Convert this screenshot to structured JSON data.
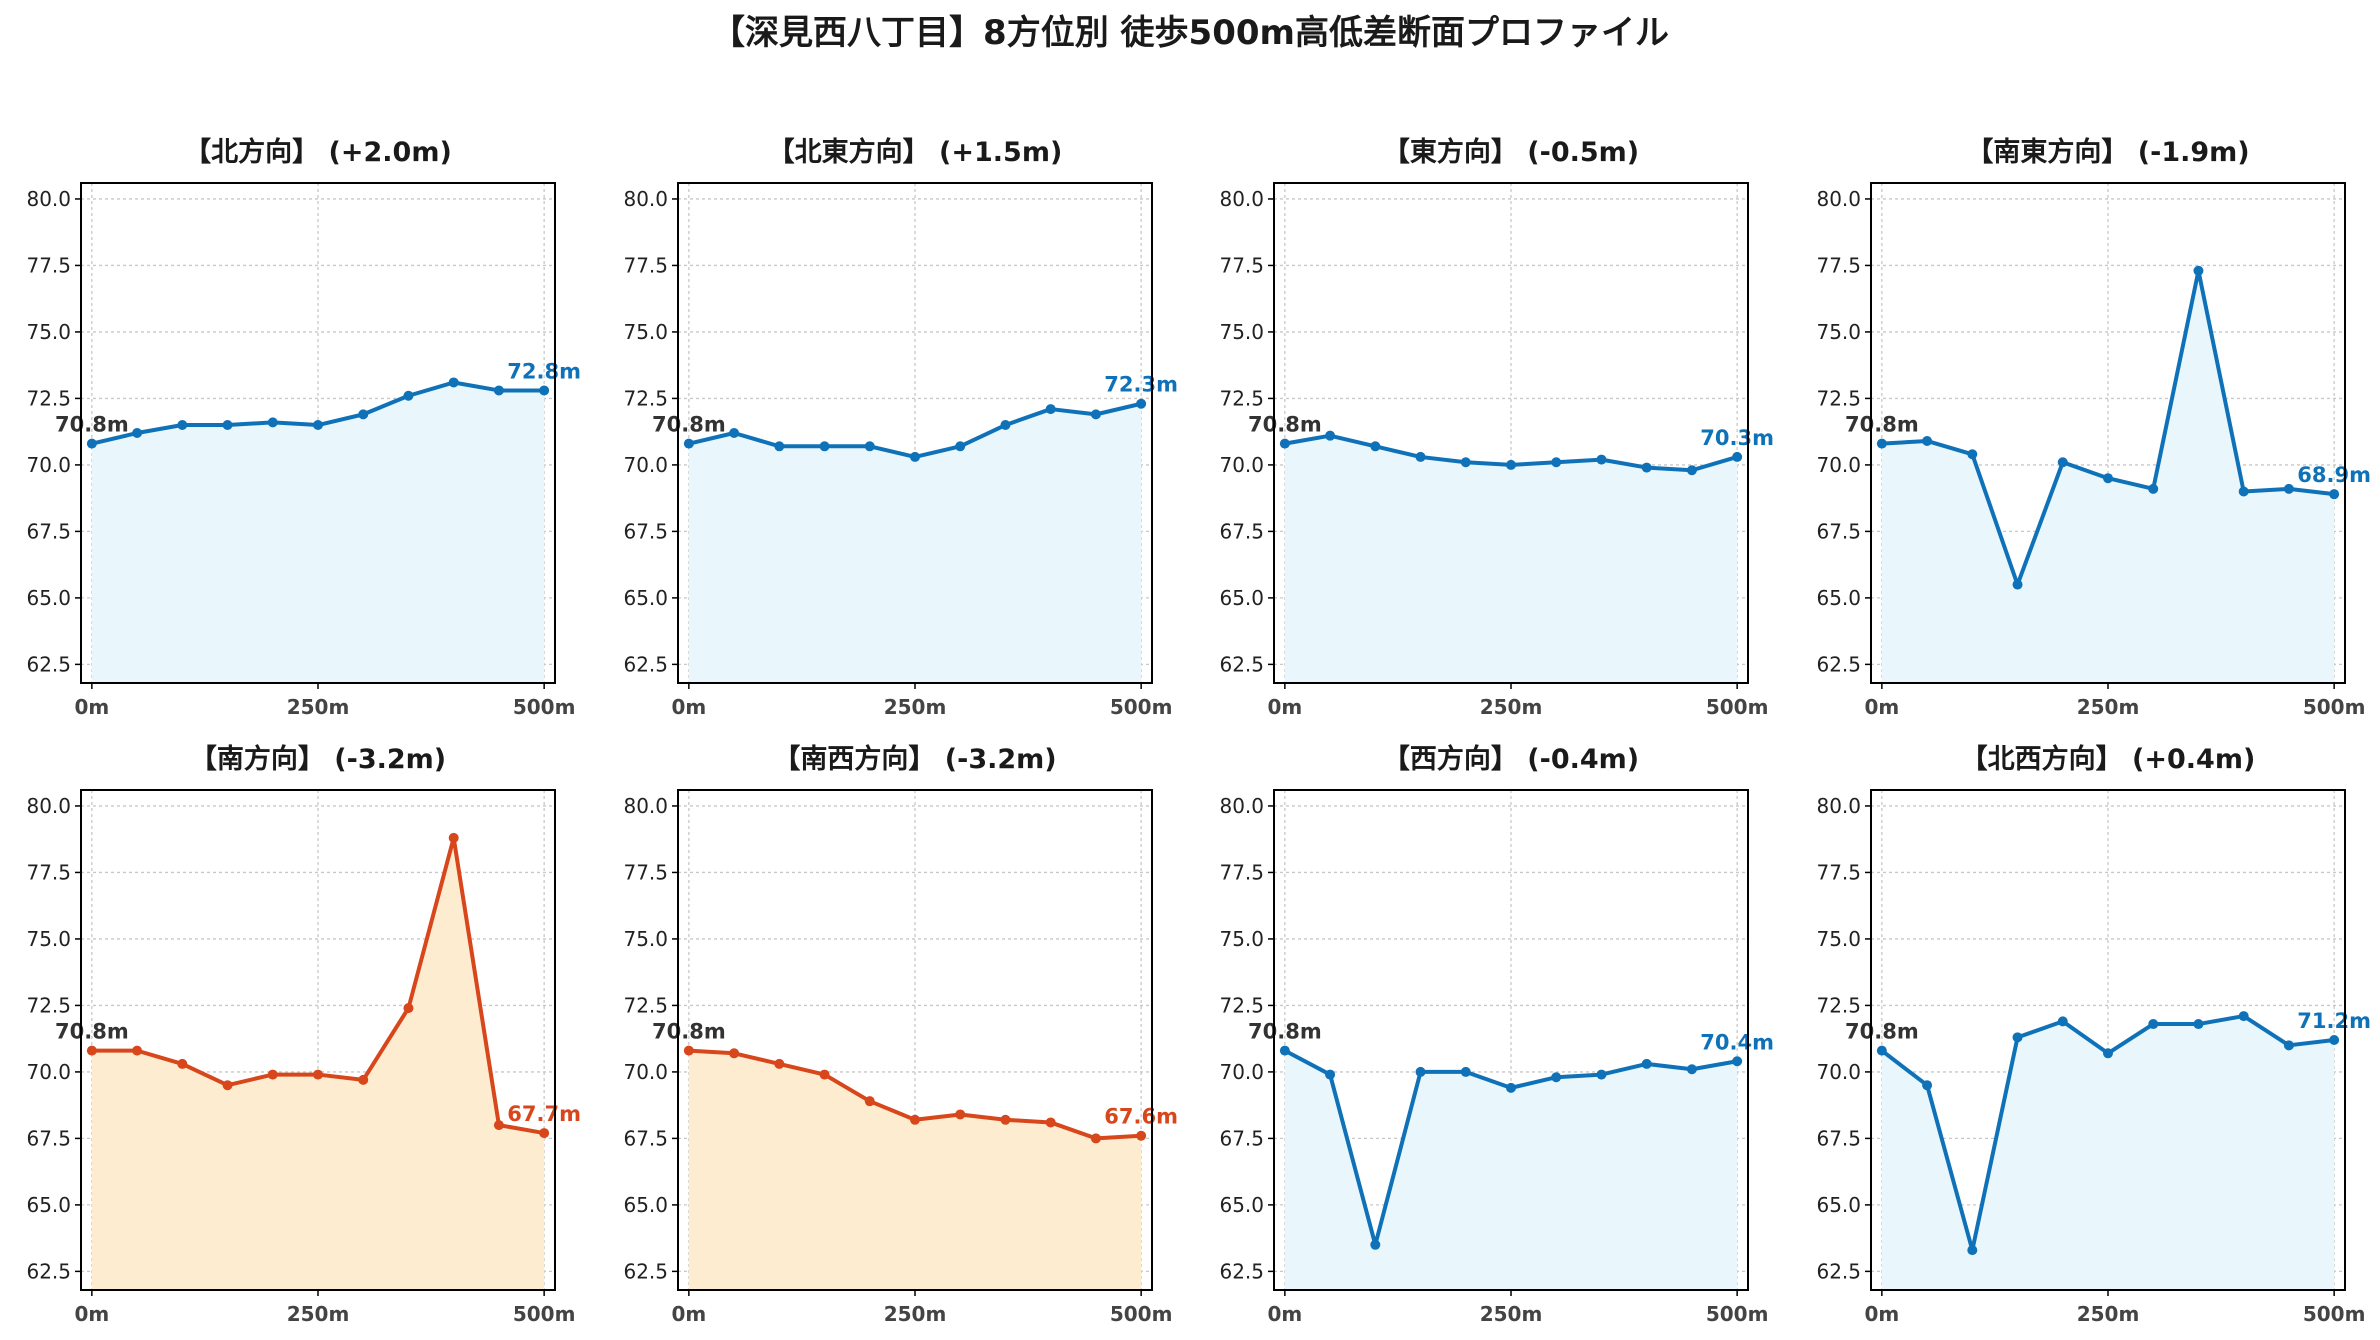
{
  "title": "【深見西八丁目】8方位別 徒歩500m高低差断面プロファイル",
  "colors": {
    "up_line": "#0f72b8",
    "up_fill": "#e9f6fc",
    "down_line": "#d8461b",
    "down_fill": "#fdecd0",
    "grid": "#c8c8c8",
    "start_label": "#333333"
  },
  "chart_data": [
    {
      "type": "area",
      "title": "【北方向】 (+2.0m)",
      "x": [
        0,
        50,
        100,
        150,
        200,
        250,
        300,
        350,
        400,
        450,
        500
      ],
      "values": [
        70.8,
        71.2,
        71.5,
        71.5,
        71.6,
        71.5,
        71.9,
        72.6,
        73.1,
        72.8,
        72.8
      ],
      "xticks": [
        "0m",
        "250m",
        "500m"
      ],
      "yticks": [
        "62.5",
        "65.0",
        "67.5",
        "70.0",
        "72.5",
        "75.0",
        "77.5",
        "80.0"
      ],
      "ylim": [
        61.8,
        80.6
      ],
      "start_label": "70.8m",
      "end_label": "72.8m",
      "trend": "up",
      "grid": true
    },
    {
      "type": "area",
      "title": "【北東方向】 (+1.5m)",
      "x": [
        0,
        50,
        100,
        150,
        200,
        250,
        300,
        350,
        400,
        450,
        500
      ],
      "values": [
        70.8,
        71.2,
        70.7,
        70.7,
        70.7,
        70.3,
        70.7,
        71.5,
        72.1,
        71.9,
        72.3
      ],
      "xticks": [
        "0m",
        "250m",
        "500m"
      ],
      "yticks": [
        "62.5",
        "65.0",
        "67.5",
        "70.0",
        "72.5",
        "75.0",
        "77.5",
        "80.0"
      ],
      "ylim": [
        61.8,
        80.6
      ],
      "start_label": "70.8m",
      "end_label": "72.3m",
      "trend": "up",
      "grid": true
    },
    {
      "type": "area",
      "title": "【東方向】 (-0.5m)",
      "x": [
        0,
        50,
        100,
        150,
        200,
        250,
        300,
        350,
        400,
        450,
        500
      ],
      "values": [
        70.8,
        71.1,
        70.7,
        70.3,
        70.1,
        70.0,
        70.1,
        70.2,
        69.9,
        69.8,
        70.3
      ],
      "xticks": [
        "0m",
        "250m",
        "500m"
      ],
      "yticks": [
        "62.5",
        "65.0",
        "67.5",
        "70.0",
        "72.5",
        "75.0",
        "77.5",
        "80.0"
      ],
      "ylim": [
        61.8,
        80.6
      ],
      "start_label": "70.8m",
      "end_label": "70.3m",
      "trend": "up",
      "grid": true
    },
    {
      "type": "area",
      "title": "【南東方向】 (-1.9m)",
      "x": [
        0,
        50,
        100,
        150,
        200,
        250,
        300,
        350,
        400,
        450,
        500
      ],
      "values": [
        70.8,
        70.9,
        70.4,
        65.5,
        70.1,
        69.5,
        69.1,
        77.3,
        69.0,
        69.1,
        68.9
      ],
      "xticks": [
        "0m",
        "250m",
        "500m"
      ],
      "yticks": [
        "62.5",
        "65.0",
        "67.5",
        "70.0",
        "72.5",
        "75.0",
        "77.5",
        "80.0"
      ],
      "ylim": [
        61.8,
        80.6
      ],
      "start_label": "70.8m",
      "end_label": "68.9m",
      "trend": "up",
      "grid": true
    },
    {
      "type": "area",
      "title": "【南方向】 (-3.2m)",
      "x": [
        0,
        50,
        100,
        150,
        200,
        250,
        300,
        350,
        400,
        450,
        500
      ],
      "values": [
        70.8,
        70.8,
        70.3,
        69.5,
        69.9,
        69.9,
        69.7,
        72.4,
        78.8,
        68.0,
        67.7
      ],
      "xticks": [
        "0m",
        "250m",
        "500m"
      ],
      "yticks": [
        "62.5",
        "65.0",
        "67.5",
        "70.0",
        "72.5",
        "75.0",
        "77.5",
        "80.0"
      ],
      "ylim": [
        61.8,
        80.6
      ],
      "start_label": "70.8m",
      "end_label": "67.7m",
      "trend": "down",
      "grid": true
    },
    {
      "type": "area",
      "title": "【南西方向】 (-3.2m)",
      "x": [
        0,
        50,
        100,
        150,
        200,
        250,
        300,
        350,
        400,
        450,
        500
      ],
      "values": [
        70.8,
        70.7,
        70.3,
        69.9,
        68.9,
        68.2,
        68.4,
        68.2,
        68.1,
        67.5,
        67.6
      ],
      "xticks": [
        "0m",
        "250m",
        "500m"
      ],
      "yticks": [
        "62.5",
        "65.0",
        "67.5",
        "70.0",
        "72.5",
        "75.0",
        "77.5",
        "80.0"
      ],
      "ylim": [
        61.8,
        80.6
      ],
      "start_label": "70.8m",
      "end_label": "67.6m",
      "trend": "down",
      "grid": true
    },
    {
      "type": "area",
      "title": "【西方向】 (-0.4m)",
      "x": [
        0,
        50,
        100,
        150,
        200,
        250,
        300,
        350,
        400,
        450,
        500
      ],
      "values": [
        70.8,
        69.9,
        63.5,
        70.0,
        70.0,
        69.4,
        69.8,
        69.9,
        70.3,
        70.1,
        70.4
      ],
      "xticks": [
        "0m",
        "250m",
        "500m"
      ],
      "yticks": [
        "62.5",
        "65.0",
        "67.5",
        "70.0",
        "72.5",
        "75.0",
        "77.5",
        "80.0"
      ],
      "ylim": [
        61.8,
        80.6
      ],
      "start_label": "70.8m",
      "end_label": "70.4m",
      "trend": "up",
      "grid": true
    },
    {
      "type": "area",
      "title": "【北西方向】 (+0.4m)",
      "x": [
        0,
        50,
        100,
        150,
        200,
        250,
        300,
        350,
        400,
        450,
        500
      ],
      "values": [
        70.8,
        69.5,
        63.3,
        71.3,
        71.9,
        70.7,
        71.8,
        71.8,
        72.1,
        71.0,
        71.2
      ],
      "xticks": [
        "0m",
        "250m",
        "500m"
      ],
      "yticks": [
        "62.5",
        "65.0",
        "67.5",
        "70.0",
        "72.5",
        "75.0",
        "77.5",
        "80.0"
      ],
      "ylim": [
        61.8,
        80.6
      ],
      "start_label": "70.8m",
      "end_label": "71.2m",
      "trend": "up",
      "grid": true
    }
  ]
}
